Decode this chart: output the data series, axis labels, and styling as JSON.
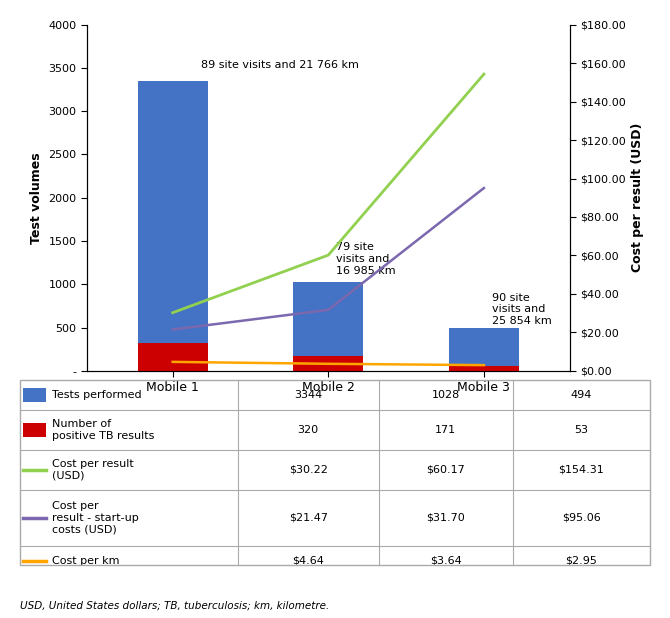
{
  "categories": [
    "Mobile 1",
    "Mobile 2",
    "Mobile 3"
  ],
  "tests_performed": [
    3344,
    1028,
    494
  ],
  "positive_tb": [
    320,
    171,
    53
  ],
  "cost_per_result": [
    30.22,
    60.17,
    154.31
  ],
  "cost_per_result_startup": [
    21.47,
    31.7,
    95.06
  ],
  "cost_per_km": [
    4.64,
    3.64,
    2.95
  ],
  "bar_color_blue": "#4472C4",
  "bar_color_red": "#CC0000",
  "line_color_green": "#92D050",
  "line_color_purple": "#7B68AE",
  "line_color_orange": "#FFA500",
  "annotation_1": "89 site visits and 21 766 km",
  "annotation_2": "79 site\nvisits and\n16 985 km",
  "annotation_3": "90 site\nvisits and\n25 854 km",
  "left_yaxis_label": "Test volumes",
  "right_yaxis_label": "Cost per result (USD)",
  "left_ylim": [
    0,
    4000
  ],
  "right_ylim": [
    0,
    180
  ],
  "left_yticks": [
    0,
    500,
    1000,
    1500,
    2000,
    2500,
    3000,
    3500,
    4000
  ],
  "right_yticks": [
    0,
    20,
    40,
    60,
    80,
    100,
    120,
    140,
    160,
    180
  ],
  "right_yticklabels": [
    "$0.00",
    "$20.00",
    "$40.00",
    "$60.00",
    "$80.00",
    "$100.00",
    "$120.00",
    "$140.00",
    "$160.00",
    "$180.00"
  ],
  "left_yticklabels": [
    "-",
    "500",
    "1000",
    "1500",
    "2000",
    "2500",
    "3000",
    "3500",
    "4000"
  ],
  "table_row_labels": [
    "Tests performed",
    "Number of\npositive TB results",
    "Cost per result\n(USD)",
    "Cost per\nresult - start-up\ncosts (USD)",
    "Cost per km"
  ],
  "table_row_icons": [
    "rect_blue",
    "rect_red",
    "line_green",
    "line_purple",
    "line_orange"
  ],
  "table_values": [
    [
      "3344",
      "1028",
      "494"
    ],
    [
      "320",
      "171",
      "53"
    ],
    [
      "$30.22",
      "$60.17",
      "$154.31"
    ],
    [
      "$21.47",
      "$31.70",
      "$95.06"
    ],
    [
      "$4.64",
      "$3.64",
      "$2.95"
    ]
  ],
  "footnote": "USD, United States dollars; TB, tuberculosis; km, kilometre.",
  "background_color": "#FFFFFF",
  "table_border_color": "#AAAAAA"
}
